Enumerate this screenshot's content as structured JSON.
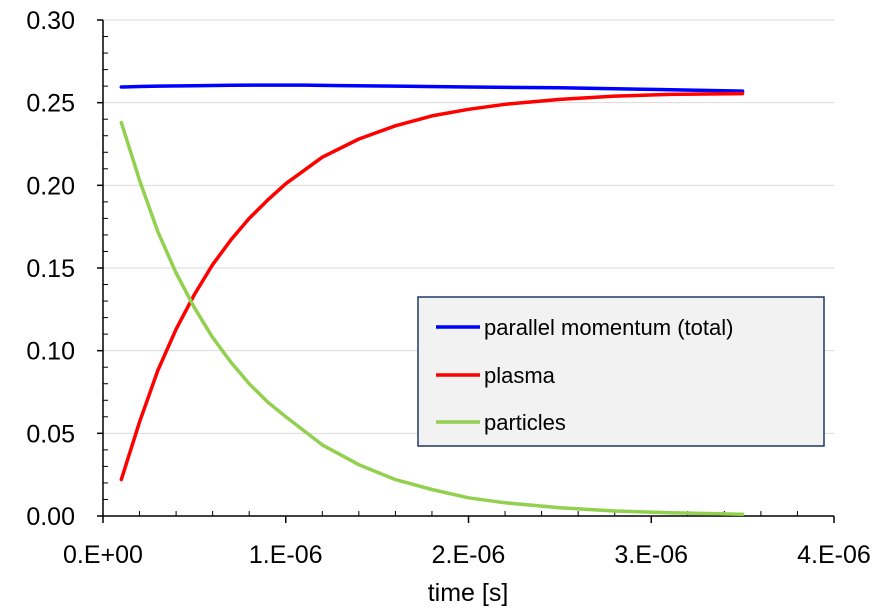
{
  "chart_data": {
    "type": "line",
    "xlabel": "time [s]",
    "ylabel": "",
    "xlim": [
      0,
      4e-06
    ],
    "ylim": [
      0,
      0.3
    ],
    "x_ticks": [
      0,
      1e-06,
      2e-06,
      3e-06,
      4e-06
    ],
    "x_tick_labels": [
      "0.E+00",
      "1.E-06",
      "2.E-06",
      "3.E-06",
      "4.E-06"
    ],
    "y_ticks": [
      0,
      0.05,
      0.1,
      0.15,
      0.2,
      0.25,
      0.3
    ],
    "y_tick_labels": [
      "0.00",
      "0.05",
      "0.10",
      "0.15",
      "0.20",
      "0.25",
      "0.30"
    ],
    "grid": "horizontal",
    "legend_position": "lower-right",
    "series": [
      {
        "name": "parallel momentum (total)",
        "color": "#0000ff",
        "x": [
          1e-07,
          2e-07,
          3e-07,
          5e-07,
          7e-07,
          9e-07,
          1.1e-06,
          1.3e-06,
          1.6e-06,
          2e-06,
          2.5e-06,
          3e-06,
          3.5e-06
        ],
        "y": [
          0.2595,
          0.2598,
          0.26,
          0.2602,
          0.2605,
          0.2606,
          0.2606,
          0.2603,
          0.26,
          0.2595,
          0.259,
          0.258,
          0.257
        ]
      },
      {
        "name": "plasma",
        "color": "#ff0000",
        "x": [
          1e-07,
          2e-07,
          3e-07,
          4e-07,
          5e-07,
          6e-07,
          7e-07,
          8e-07,
          9e-07,
          1e-06,
          1.2e-06,
          1.4e-06,
          1.6e-06,
          1.8e-06,
          2e-06,
          2.2e-06,
          2.5e-06,
          2.8e-06,
          3.1e-06,
          3.5e-06
        ],
        "y": [
          0.022,
          0.057,
          0.088,
          0.113,
          0.134,
          0.152,
          0.167,
          0.18,
          0.191,
          0.201,
          0.217,
          0.228,
          0.236,
          0.242,
          0.246,
          0.249,
          0.252,
          0.254,
          0.255,
          0.2555
        ]
      },
      {
        "name": "particles",
        "color": "#92d050",
        "x": [
          1e-07,
          2e-07,
          3e-07,
          4e-07,
          5e-07,
          6e-07,
          7e-07,
          8e-07,
          9e-07,
          1e-06,
          1.2e-06,
          1.4e-06,
          1.6e-06,
          1.8e-06,
          2e-06,
          2.2e-06,
          2.5e-06,
          2.8e-06,
          3.1e-06,
          3.5e-06
        ],
        "y": [
          0.238,
          0.203,
          0.172,
          0.147,
          0.126,
          0.108,
          0.093,
          0.08,
          0.069,
          0.06,
          0.043,
          0.031,
          0.022,
          0.016,
          0.011,
          0.008,
          0.005,
          0.003,
          0.002,
          0.001
        ]
      }
    ]
  }
}
